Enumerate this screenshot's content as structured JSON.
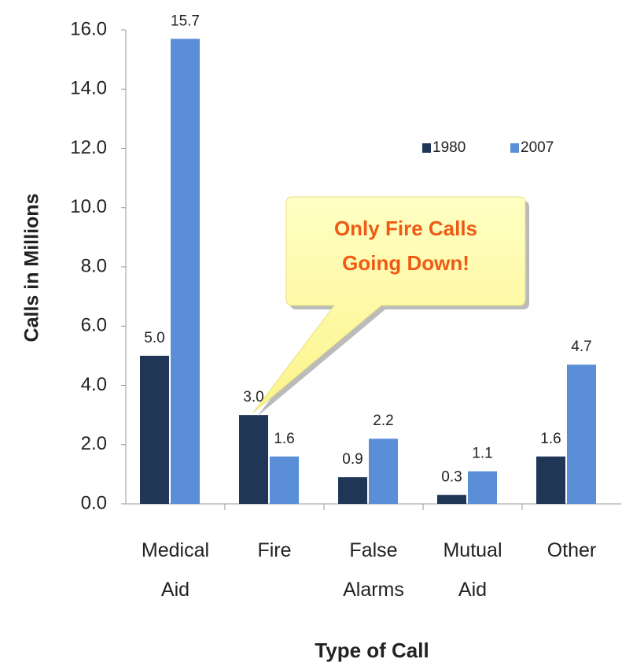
{
  "chart_data": {
    "type": "bar",
    "categories": [
      "Medical Aid",
      "Fire",
      "False Alarms",
      "Mutual Aid",
      "Other"
    ],
    "series": [
      {
        "name": "1980",
        "color": "#1f3656",
        "values": [
          5.0,
          3.0,
          0.9,
          0.3,
          1.6
        ],
        "value_labels": [
          "5.0",
          "3.0",
          "0.9",
          "0.3",
          "1.6"
        ]
      },
      {
        "name": "2007",
        "color": "#5a8fd8",
        "values": [
          15.7,
          1.6,
          2.2,
          1.1,
          4.7
        ],
        "value_labels": [
          "15.7",
          "1.6",
          "2.2",
          "1.1",
          "4.7"
        ]
      }
    ],
    "ylim": [
      0,
      16
    ],
    "yticks": [
      {
        "value": 0,
        "label": "0.0"
      },
      {
        "value": 2,
        "label": "2.0"
      },
      {
        "value": 4,
        "label": "4.0"
      },
      {
        "value": 6,
        "label": "6.0"
      },
      {
        "value": 8,
        "label": "8.0"
      },
      {
        "value": 10,
        "label": "10.0"
      },
      {
        "value": 12,
        "label": "12.0"
      },
      {
        "value": 14,
        "label": "14.0"
      },
      {
        "value": 16,
        "label": "16.0"
      }
    ],
    "y_label": "Calls in Millions",
    "x_label": "Type of Call",
    "annotation": [
      "Only Fire Calls",
      "Going Down!"
    ],
    "grid": false,
    "legend": "upper right"
  }
}
